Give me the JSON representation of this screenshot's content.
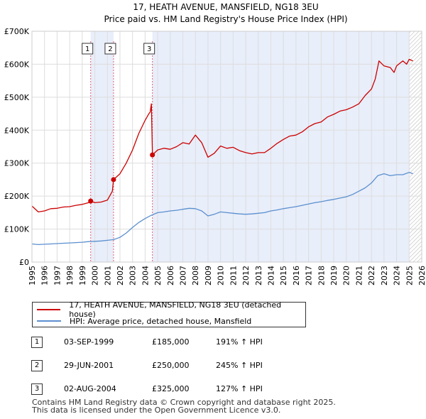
{
  "chart_data": {
    "type": "line",
    "title": "17, HEATH AVENUE, MANSFIELD, NG18 3EU",
    "subtitle": "Price paid vs. HM Land Registry's House Price Index (HPI)",
    "xlim": [
      1995,
      2026
    ],
    "ylim": [
      0,
      700000
    ],
    "x_ticks": [
      1995,
      1996,
      1997,
      1998,
      1999,
      2000,
      2001,
      2002,
      2003,
      2004,
      2005,
      2006,
      2007,
      2008,
      2009,
      2010,
      2011,
      2012,
      2013,
      2014,
      2015,
      2016,
      2017,
      2018,
      2019,
      2020,
      2021,
      2022,
      2023,
      2024,
      2025,
      2026
    ],
    "y_ticks": [
      0,
      100000,
      200000,
      300000,
      400000,
      500000,
      600000,
      700000
    ],
    "y_tick_labels": [
      "£0",
      "£100K",
      "£200K",
      "£300K",
      "£400K",
      "£500K",
      "£600K",
      "£700K"
    ],
    "series": [
      {
        "name": "17, HEATH AVENUE, MANSFIELD, NG18 3EU (detached house)",
        "color": "#cc0000",
        "x": [
          1995.0,
          1995.5,
          1996.0,
          1996.5,
          1997.0,
          1997.5,
          1998.0,
          1998.5,
          1999.0,
          1999.5,
          1999.67,
          2000.0,
          2000.5,
          2001.0,
          2001.4,
          2001.49,
          2002.0,
          2002.5,
          2003.0,
          2003.5,
          2004.0,
          2004.3,
          2004.4,
          2004.5,
          2004.58,
          2005.0,
          2005.5,
          2006.0,
          2006.5,
          2007.0,
          2007.5,
          2008.0,
          2008.5,
          2009.0,
          2009.5,
          2010.0,
          2010.5,
          2011.0,
          2011.5,
          2012.0,
          2012.5,
          2013.0,
          2013.5,
          2014.0,
          2014.5,
          2015.0,
          2015.5,
          2016.0,
          2016.5,
          2017.0,
          2017.5,
          2018.0,
          2018.5,
          2019.0,
          2019.5,
          2020.0,
          2020.5,
          2021.0,
          2021.5,
          2022.0,
          2022.3,
          2022.6,
          2023.0,
          2023.5,
          2023.8,
          2024.0,
          2024.5,
          2024.8,
          2025.0,
          2025.3
        ],
        "y": [
          170000,
          152000,
          155000,
          162000,
          163000,
          167000,
          168000,
          172000,
          175000,
          180000,
          185000,
          180000,
          182000,
          188000,
          215000,
          250000,
          268000,
          300000,
          340000,
          390000,
          430000,
          450000,
          455000,
          480000,
          325000,
          340000,
          345000,
          342000,
          350000,
          362000,
          358000,
          385000,
          362000,
          318000,
          330000,
          352000,
          345000,
          348000,
          338000,
          332000,
          328000,
          332000,
          332000,
          345000,
          360000,
          372000,
          382000,
          385000,
          395000,
          410000,
          420000,
          425000,
          440000,
          448000,
          458000,
          462000,
          470000,
          480000,
          505000,
          525000,
          555000,
          610000,
          595000,
          590000,
          575000,
          595000,
          610000,
          600000,
          615000,
          610000
        ]
      },
      {
        "name": "HPI: Average price, detached house, Mansfield",
        "color": "#5b8fcf",
        "x": [
          1995.0,
          1995.5,
          1996.0,
          1996.5,
          1997.0,
          1997.5,
          1998.0,
          1998.5,
          1999.0,
          1999.5,
          2000.0,
          2000.5,
          2001.0,
          2001.5,
          2002.0,
          2002.5,
          2003.0,
          2003.5,
          2004.0,
          2004.5,
          2005.0,
          2005.5,
          2006.0,
          2006.5,
          2007.0,
          2007.5,
          2008.0,
          2008.5,
          2009.0,
          2009.5,
          2010.0,
          2010.5,
          2011.0,
          2011.5,
          2012.0,
          2012.5,
          2013.0,
          2013.5,
          2014.0,
          2014.5,
          2015.0,
          2015.5,
          2016.0,
          2016.5,
          2017.0,
          2017.5,
          2018.0,
          2018.5,
          2019.0,
          2019.5,
          2020.0,
          2020.5,
          2021.0,
          2021.5,
          2022.0,
          2022.5,
          2023.0,
          2023.5,
          2024.0,
          2024.5,
          2025.0,
          2025.3
        ],
        "y": [
          55000,
          53000,
          54000,
          55000,
          56000,
          57000,
          58000,
          59000,
          60000,
          62000,
          63000,
          64000,
          66000,
          68000,
          75000,
          88000,
          105000,
          120000,
          132000,
          142000,
          150000,
          152000,
          155000,
          157000,
          160000,
          163000,
          162000,
          155000,
          140000,
          145000,
          152000,
          150000,
          148000,
          146000,
          145000,
          146000,
          148000,
          150000,
          155000,
          158000,
          162000,
          165000,
          168000,
          172000,
          176000,
          180000,
          183000,
          187000,
          190000,
          194000,
          198000,
          205000,
          215000,
          225000,
          240000,
          262000,
          268000,
          262000,
          265000,
          265000,
          272000,
          268000
        ]
      }
    ],
    "markers": [
      {
        "label": "1",
        "x": 1999.67,
        "y": 185000
      },
      {
        "label": "2",
        "x": 2001.49,
        "y": 250000
      },
      {
        "label": "3",
        "x": 2004.58,
        "y": 325000
      }
    ],
    "shaded_ranges": [
      [
        1999.67,
        2001.49
      ],
      [
        2004.58,
        2025.0
      ]
    ],
    "hatched_range": [
      2025.0,
      2026.0
    ]
  },
  "legend": {
    "entries": [
      {
        "label": "17, HEATH AVENUE, MANSFIELD, NG18 3EU (detached house)",
        "color": "#cc0000"
      },
      {
        "label": "HPI: Average price, detached house, Mansfield",
        "color": "#5b8fcf"
      }
    ]
  },
  "sales": [
    {
      "num": "1",
      "date": "03-SEP-1999",
      "price": "£185,000",
      "hpi": "191% ↑ HPI"
    },
    {
      "num": "2",
      "date": "29-JUN-2001",
      "price": "£250,000",
      "hpi": "245% ↑ HPI"
    },
    {
      "num": "3",
      "date": "02-AUG-2004",
      "price": "£325,000",
      "hpi": "127% ↑ HPI"
    }
  ],
  "footer": {
    "line1": "Contains HM Land Registry data © Crown copyright and database right 2025.",
    "line2": "This data is licensed under the Open Government Licence v3.0."
  }
}
